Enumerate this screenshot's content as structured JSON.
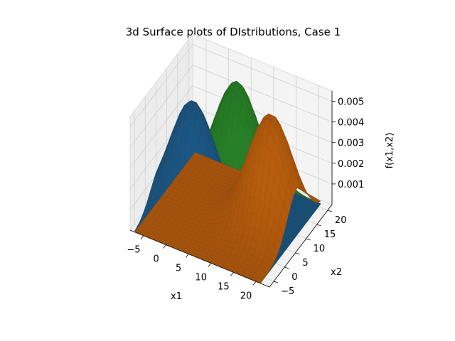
{
  "chart_data": {
    "type": "surface3d",
    "title": "3d Surface plots of DIstributions, Case 1",
    "xlabel": "x1",
    "ylabel": "x2",
    "zlabel": "f(x1,x2)",
    "xlim": [
      -8,
      23
    ],
    "ylim": [
      -7,
      22
    ],
    "zlim": [
      0,
      0.0055
    ],
    "xticks": [
      -5,
      0,
      5,
      10,
      15,
      20
    ],
    "yticks": [
      -5,
      0,
      5,
      10,
      15,
      20
    ],
    "zticks": [
      0.001,
      0.002,
      0.003,
      0.004,
      0.005
    ],
    "ztick_labels": [
      "0.001",
      "0.002",
      "0.003",
      "0.004",
      "0.005"
    ],
    "grid": true,
    "series": [
      {
        "color": "#2a8a2a",
        "peak_at": [
          5,
          15
        ],
        "peak_value": 0.0053
      },
      {
        "color": "#1f5f8f",
        "peak_at": [
          0,
          5
        ],
        "peak_value": 0.0053
      },
      {
        "color": "#c8650f",
        "peak_at": [
          15,
          10
        ],
        "peak_value": 0.0053
      }
    ]
  }
}
